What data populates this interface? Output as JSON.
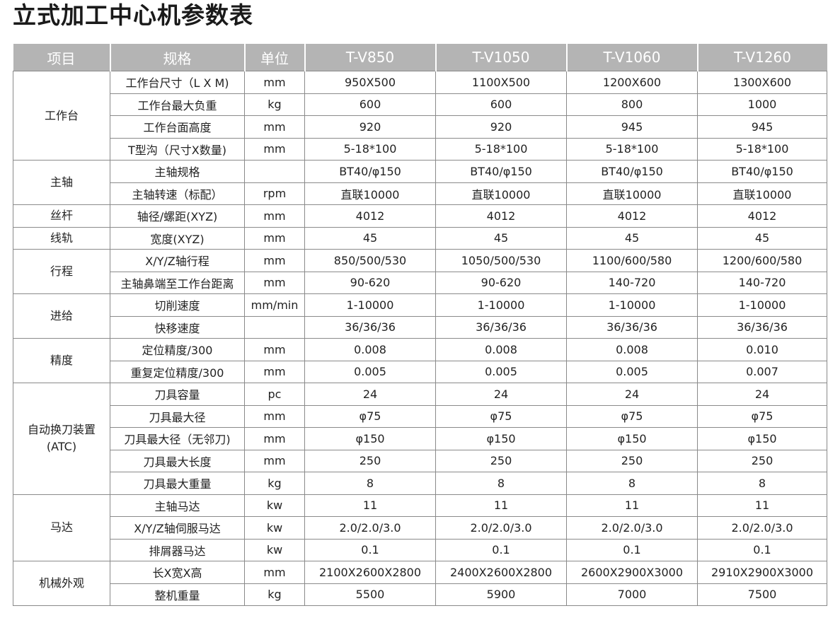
{
  "title": "立式加工中心机参数表",
  "headers": [
    "项目",
    "规格",
    "单位",
    "T-V850",
    "T-V1050",
    "T-V1060",
    "T-V1260"
  ],
  "groups": [
    {
      "name": "工作台",
      "rows": [
        {
          "spec": "工作台尺寸（L X M)",
          "unit": "mm",
          "values": [
            "950X500",
            "1100X500",
            "1200X600",
            "1300X600"
          ]
        },
        {
          "spec": "工作台最大负重",
          "unit": "kg",
          "values": [
            "600",
            "600",
            "800",
            "1000"
          ]
        },
        {
          "spec": "工作台面高度",
          "unit": "mm",
          "values": [
            "920",
            "920",
            "945",
            "945"
          ]
        },
        {
          "spec": "T型沟（尺寸X数量)",
          "unit": "mm",
          "values": [
            "5-18*100",
            "5-18*100",
            "5-18*100",
            "5-18*100"
          ]
        }
      ]
    },
    {
      "name": "主轴",
      "rows": [
        {
          "spec": "主轴规格",
          "unit": "",
          "values": [
            "BT40/φ150",
            "BT40/φ150",
            "BT40/φ150",
            "BT40/φ150"
          ]
        },
        {
          "spec": "主轴转速（标配）",
          "unit": "rpm",
          "values": [
            "直联10000",
            "直联10000",
            "直联10000",
            "直联10000"
          ]
        }
      ]
    },
    {
      "name": "丝杆",
      "rows": [
        {
          "spec": "轴径/螺距(XYZ)",
          "unit": "mm",
          "values": [
            "4012",
            "4012",
            "4012",
            "4012"
          ]
        }
      ]
    },
    {
      "name": "线轨",
      "rows": [
        {
          "spec": "宽度(XYZ)",
          "unit": "mm",
          "values": [
            "45",
            "45",
            "45",
            "45"
          ]
        }
      ]
    },
    {
      "name": "行程",
      "rows": [
        {
          "spec": "X/Y/Z轴行程",
          "unit": "mm",
          "values": [
            "850/500/530",
            "1050/500/530",
            "1100/600/580",
            "1200/600/580"
          ]
        },
        {
          "spec": "主轴鼻端至工作台距离",
          "unit": "mm",
          "values": [
            "90-620",
            "90-620",
            "140-720",
            "140-720"
          ]
        }
      ]
    },
    {
      "name": "进给",
      "rows": [
        {
          "spec": "切削速度",
          "unit": "mm/min",
          "values": [
            "1-10000",
            "1-10000",
            "1-10000",
            "1-10000"
          ]
        },
        {
          "spec": "快移速度",
          "unit": "",
          "values": [
            "36/36/36",
            "36/36/36",
            "36/36/36",
            "36/36/36"
          ]
        }
      ]
    },
    {
      "name": "精度",
      "rows": [
        {
          "spec": "定位精度/300",
          "unit": "mm",
          "values": [
            "0.008",
            "0.008",
            "0.008",
            "0.010"
          ]
        },
        {
          "spec": "重复定位精度/300",
          "unit": "mm",
          "values": [
            "0.005",
            "0.005",
            "0.005",
            "0.007"
          ]
        }
      ]
    },
    {
      "name": "自动换刀装置\n(ATC)",
      "rows": [
        {
          "spec": "刀具容量",
          "unit": "pc",
          "values": [
            "24",
            "24",
            "24",
            "24"
          ]
        },
        {
          "spec": "刀具最大径",
          "unit": "mm",
          "values": [
            "φ75",
            "φ75",
            "φ75",
            "φ75"
          ]
        },
        {
          "spec": "刀具最大径（无邻刀)",
          "unit": "mm",
          "values": [
            "φ150",
            "φ150",
            "φ150",
            "φ150"
          ]
        },
        {
          "spec": "刀具最大长度",
          "unit": "mm",
          "values": [
            "250",
            "250",
            "250",
            "250"
          ]
        },
        {
          "spec": "刀具最大重量",
          "unit": "kg",
          "values": [
            "8",
            "8",
            "8",
            "8"
          ]
        }
      ]
    },
    {
      "name": "马达",
      "rows": [
        {
          "spec": "主轴马达",
          "unit": "kw",
          "values": [
            "11",
            "11",
            "11",
            "11"
          ]
        },
        {
          "spec": "X/Y/Z轴伺服马达",
          "unit": "kw",
          "values": [
            "2.0/2.0/3.0",
            "2.0/2.0/3.0",
            "2.0/2.0/3.0",
            "2.0/2.0/3.0"
          ]
        },
        {
          "spec": "排屑器马达",
          "unit": "kw",
          "values": [
            "0.1",
            "0.1",
            "0.1",
            "0.1"
          ]
        }
      ]
    },
    {
      "name": "机械外观",
      "rows": [
        {
          "spec": "长X宽X高",
          "unit": "mm",
          "values": [
            "2100X2600X2800",
            "2400X2600X2800",
            "2600X2900X3000",
            "2910X2900X3000"
          ]
        },
        {
          "spec": "整机重量",
          "unit": "kg",
          "values": [
            "5500",
            "5900",
            "7000",
            "7500"
          ]
        }
      ]
    }
  ]
}
